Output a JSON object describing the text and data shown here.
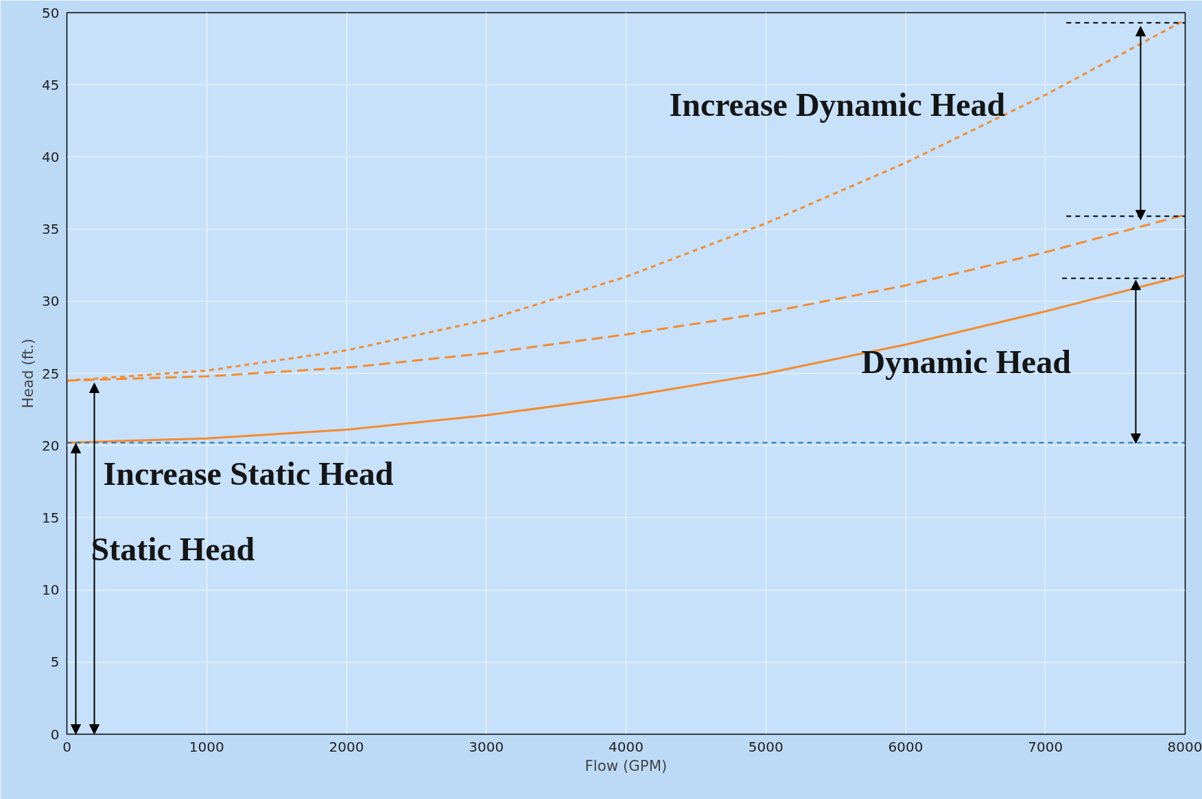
{
  "chart_data": {
    "type": "line",
    "xlabel": "Flow (GPM)",
    "ylabel": "Head (ft.)",
    "x": [
      0,
      1000,
      2000,
      3000,
      4000,
      5000,
      6000,
      7000,
      8000
    ],
    "xlim": [
      0,
      8000
    ],
    "ylim": [
      0,
      50
    ],
    "xticks": [
      0,
      1000,
      2000,
      3000,
      4000,
      5000,
      6000,
      7000,
      8000
    ],
    "yticks": [
      0,
      5,
      10,
      15,
      20,
      25,
      30,
      35,
      40,
      45,
      50
    ],
    "grid": true,
    "marker": "none",
    "series": [
      {
        "color": "#f58a2c",
        "line_style": "solid",
        "values": [
          20.2,
          20.5,
          21.1,
          22.1,
          23.4,
          25.0,
          27.0,
          29.3,
          31.8
        ]
      },
      {
        "color": "#f58a2c",
        "line_style": "dashed",
        "values": [
          24.5,
          24.8,
          25.4,
          26.4,
          27.7,
          29.2,
          31.1,
          33.4,
          36.0
        ]
      },
      {
        "color": "#f58a2c",
        "line_style": "dotted",
        "values": [
          24.5,
          25.2,
          26.6,
          28.7,
          31.7,
          35.4,
          39.6,
          44.3,
          49.5
        ]
      },
      {
        "color": "#000000",
        "line_style": "dotted",
        "x": [
          7150,
          8000
        ],
        "values": [
          49.3,
          49.3
        ]
      },
      {
        "color": "#000000",
        "line_style": "dotted",
        "x": [
          7150,
          8000
        ],
        "values": [
          35.9,
          35.9
        ]
      },
      {
        "color": "#000000",
        "line_style": "dotted",
        "x": [
          7120,
          7900
        ],
        "values": [
          31.6,
          31.6
        ]
      }
    ],
    "ref_lines": [
      {
        "axis": "y",
        "value": 20.2,
        "color": "#1f6fb5",
        "line_style": "dotted",
        "label": null
      }
    ],
    "annotations": [
      "Increase Dynamic Head",
      "Dynamic Head",
      "Increase Static Head",
      "Static Head"
    ]
  }
}
